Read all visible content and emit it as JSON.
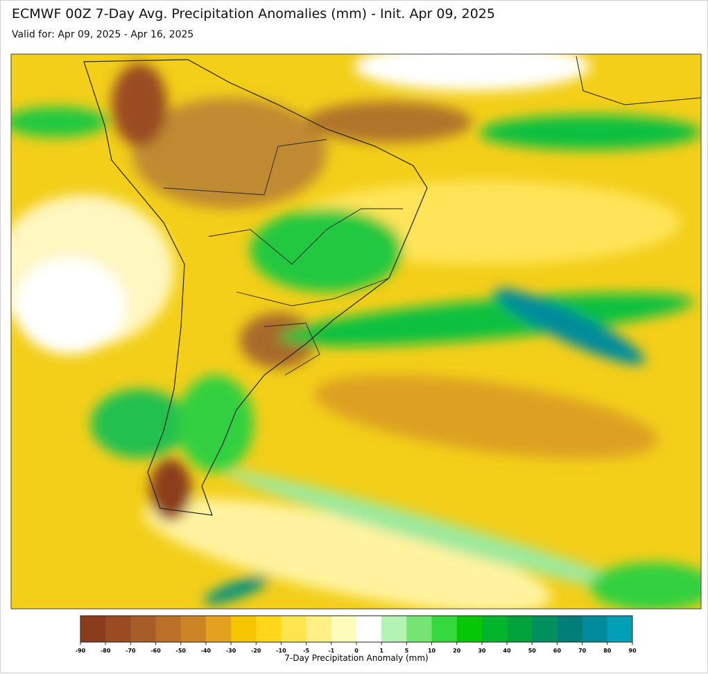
{
  "header": {
    "title": "ECMWF 00Z 7-Day Avg. Precipitation Anomalies (mm) - Init. Apr 09, 2025",
    "subtitle": "Valid for: Apr 09, 2025 - Apr 16, 2025"
  },
  "colorbar": {
    "label": "7-Day Precipitation Anomaly (mm)",
    "ticks": [
      -90,
      -80,
      -70,
      -60,
      -50,
      -40,
      -30,
      -20,
      -10,
      -5,
      -1,
      0,
      1,
      5,
      10,
      20,
      30,
      40,
      50,
      60,
      70,
      80,
      90
    ],
    "colors": [
      "#8b3c1c",
      "#9a4b22",
      "#a65d28",
      "#bb7027",
      "#cc8524",
      "#e3a11d",
      "#f7c400",
      "#ffd61a",
      "#ffe54d",
      "#fff085",
      "#fffbbb",
      "#ffffff",
      "#b3f2b3",
      "#75e475",
      "#35d83d",
      "#04c804",
      "#00b52c",
      "#00a23c",
      "#009060",
      "#007f78",
      "#008b9b",
      "#009fb5"
    ]
  }
}
